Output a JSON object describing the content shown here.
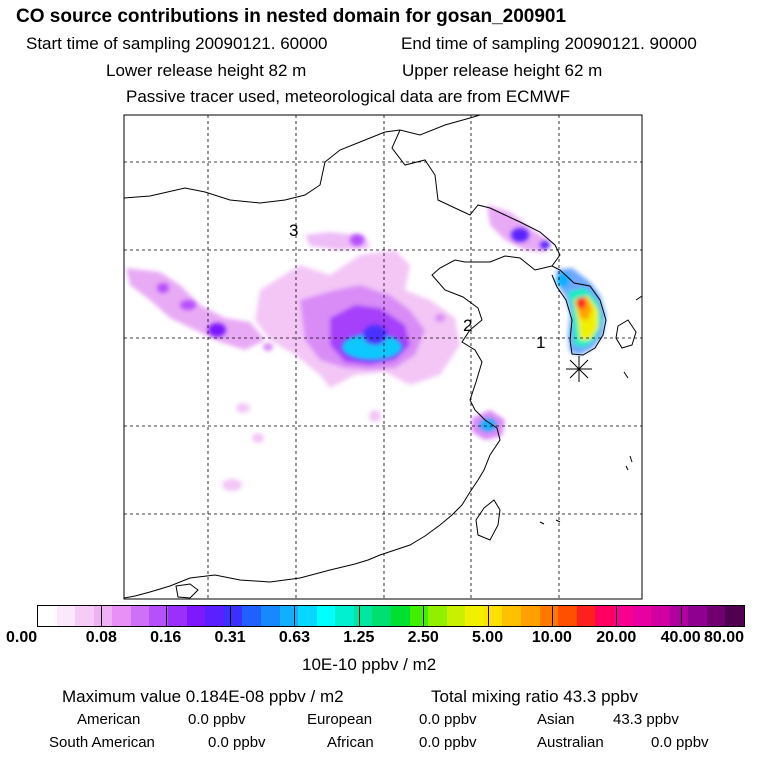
{
  "header": {
    "title": "CO  source contributions in nested domain for gosan_200901",
    "start_time": "Start time of sampling 20090121. 60000",
    "end_time": "End time of sampling 20090121. 90000",
    "lower_release": "Lower release height   82 m",
    "upper_release": "Upper release height   62 m",
    "tracer_note": "Passive tracer used, meteorological data are from ECMWF"
  },
  "map": {
    "region_labels": [
      "1",
      "2",
      "3"
    ]
  },
  "colorbar": {
    "colors": [
      "#ffffff",
      "#fbe8fb",
      "#f6ccf6",
      "#f0b0f4",
      "#e890f6",
      "#cf70f8",
      "#b650fa",
      "#9b30fc",
      "#7d18ff",
      "#5a20ff",
      "#3a30ff",
      "#2060ff",
      "#1888ff",
      "#10b0ff",
      "#08d8ff",
      "#00ffff",
      "#00f0d0",
      "#00e8a0",
      "#00e070",
      "#00e030",
      "#40f000",
      "#90f000",
      "#c8f000",
      "#f0f000",
      "#ffe000",
      "#ffc000",
      "#ffa000",
      "#ff7800",
      "#ff5000",
      "#ff2020",
      "#ff0060",
      "#f80090",
      "#e800a0",
      "#d000a0",
      "#b000a0",
      "#900090",
      "#700070",
      "#500050"
    ],
    "tick_labels": [
      "0.00",
      "0.08",
      "0.16",
      "0.31",
      "0.63",
      "1.25",
      "2.50",
      "5.00",
      "10.00",
      "20.00",
      "40.00",
      "80.00"
    ],
    "unit": "10E-10 ppbv / m2"
  },
  "stats": {
    "max_value": "Maximum value  0.184E-08 ppbv / m2",
    "total_mixing": "Total mixing ratio       43.3 ppbv",
    "american": "American",
    "american_val": "0.0 ppbv",
    "european": "European",
    "european_val": "0.0 ppbv",
    "asian": "Asian",
    "asian_val": "43.3 ppbv",
    "south_american": "South American",
    "south_american_val": "0.0 ppbv",
    "african": "African",
    "african_val": "0.0 ppbv",
    "australian": "Australian",
    "australian_val": "0.0 ppbv"
  }
}
